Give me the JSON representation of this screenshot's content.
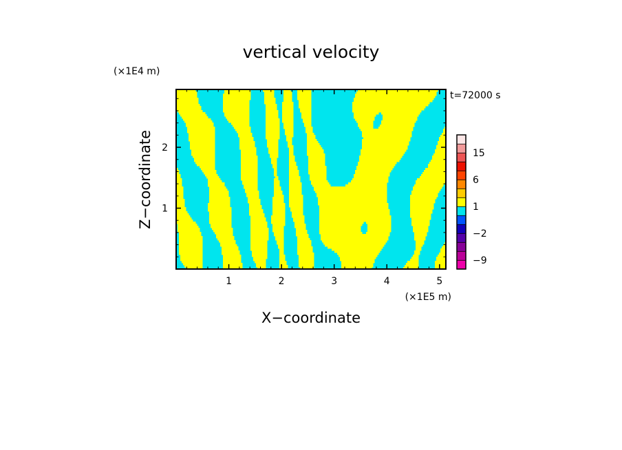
{
  "chart_data": {
    "type": "heatmap",
    "title": "vertical velocity",
    "xlabel": "X−coordinate",
    "ylabel": "Z−coordinate",
    "x_scale_label": "(×1E5 m)",
    "y_scale_label": "(×1E4 m)",
    "time_label": "t=72000 s",
    "xlim": [
      0,
      5.12
    ],
    "ylim": [
      0,
      2.95
    ],
    "x_ticks": [
      1,
      2,
      3,
      4,
      5
    ],
    "x_tick_labels": [
      "1",
      "2",
      "3",
      "4",
      "5"
    ],
    "y_ticks": [
      1,
      2
    ],
    "y_tick_labels": [
      "1",
      "2"
    ],
    "grid": false,
    "field_colors": [
      "#00e5ee",
      "#ffff00"
    ],
    "colorbar": {
      "levels": [
        -12,
        -9,
        -6,
        -4,
        -2,
        -1,
        0,
        1,
        2,
        4,
        6,
        9,
        12,
        15,
        18,
        21
      ],
      "colors": [
        "#ee00aa",
        "#bb0099",
        "#880099",
        "#5500aa",
        "#1100bb",
        "#0055ff",
        "#00e5ee",
        "#ffff00",
        "#ffcc00",
        "#ff8800",
        "#ff4400",
        "#ee1100",
        "#ee5555",
        "#f29a9a",
        "#fbe6e6"
      ],
      "tick_values": [
        -9,
        -2,
        1,
        6,
        15
      ],
      "tick_labels": [
        "−9",
        "−2",
        "1",
        "6",
        "15"
      ]
    }
  }
}
